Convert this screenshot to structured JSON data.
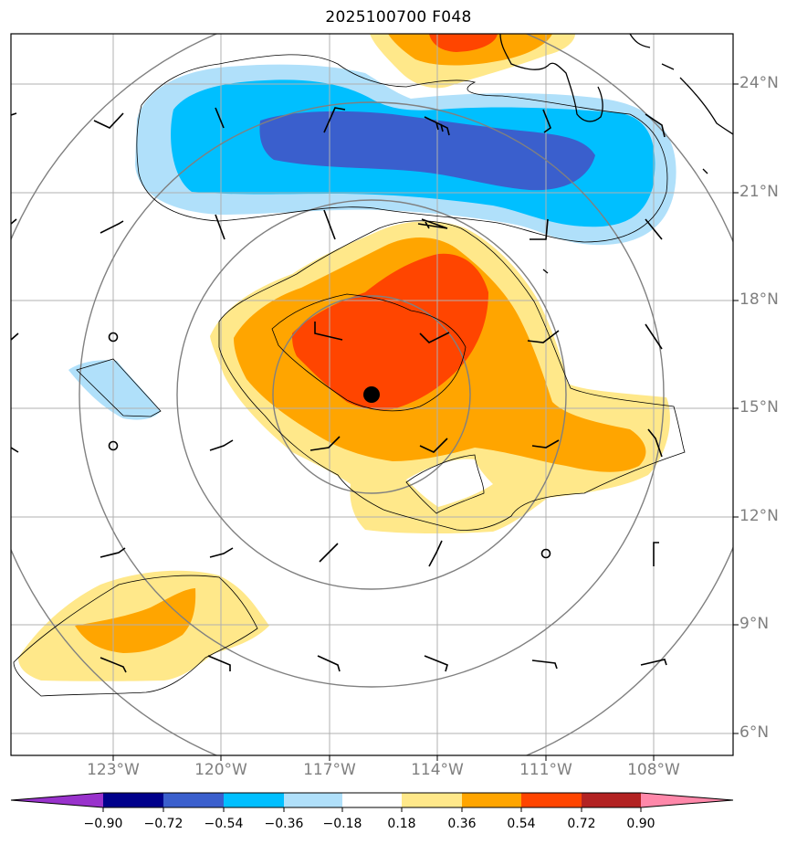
{
  "title": "2025100700 F048",
  "map": {
    "lat_labels": [
      "24°N",
      "21°N",
      "18°N",
      "15°N",
      "12°N",
      "9°N",
      "6°N"
    ],
    "lon_labels": [
      "123°W",
      "120°W",
      "117°W",
      "114°W",
      "111°W",
      "108°W"
    ],
    "center_marker": "storm-center-dot"
  },
  "colorbar": {
    "labels": [
      "−0.90",
      "−0.72",
      "−0.54",
      "−0.36",
      "−0.18",
      "0.18",
      "0.36",
      "0.54",
      "0.72",
      "0.90"
    ],
    "colors": [
      "#9932cc",
      "#00008b",
      "#3a5fcd",
      "#00bfff",
      "#b0e0fa",
      "#ffffff",
      "#ffe88a",
      "#ffa500",
      "#ff4500",
      "#b22222",
      "#ff88aa"
    ]
  },
  "palette": {
    "light_blue": "#b0e0fa",
    "sky_blue": "#00bfff",
    "royal_blue": "#3a5fcd",
    "light_yellow": "#ffe88a",
    "orange": "#ffa500",
    "orange_red": "#ff4500"
  }
}
